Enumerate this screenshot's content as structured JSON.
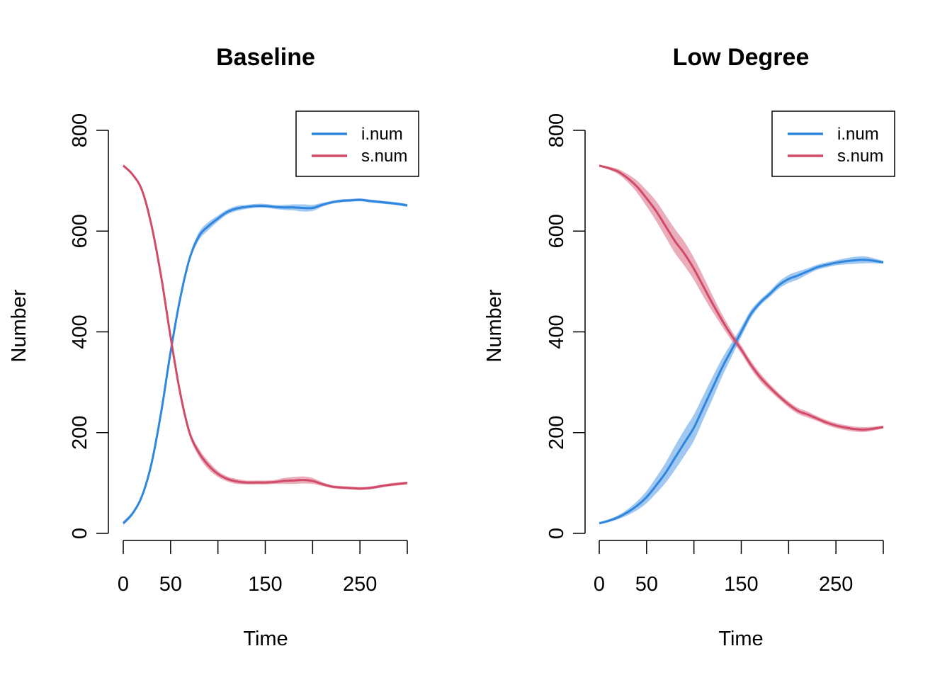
{
  "colors": {
    "i_num": "#2E86DE",
    "s_num": "#D14A68"
  },
  "chart_data": [
    {
      "type": "line",
      "title": "Baseline",
      "xlabel": "Time",
      "ylabel": "Number",
      "xlim": [
        0,
        300
      ],
      "ylim": [
        0,
        800
      ],
      "xticks": [
        0,
        50,
        100,
        150,
        200,
        250,
        300
      ],
      "xtick_labels": [
        "0",
        "50",
        "",
        "150",
        "",
        "250",
        ""
      ],
      "yticks": [
        0,
        200,
        400,
        600,
        800
      ],
      "ytick_labels": [
        "0",
        "200",
        "400",
        "600",
        "800"
      ],
      "legend": {
        "position": "top-right",
        "entries": [
          "i.num",
          "s.num"
        ]
      },
      "x": [
        0,
        10,
        20,
        30,
        40,
        50,
        60,
        70,
        80,
        90,
        100,
        110,
        120,
        130,
        140,
        150,
        160,
        170,
        180,
        190,
        200,
        210,
        220,
        230,
        240,
        250,
        260,
        270,
        280,
        290,
        300
      ],
      "series": [
        {
          "name": "i.num",
          "color_key": "i_num",
          "values": [
            20,
            40,
            75,
            140,
            240,
            360,
            465,
            545,
            590,
            610,
            625,
            638,
            645,
            648,
            650,
            650,
            648,
            647,
            647,
            646,
            646,
            652,
            657,
            660,
            661,
            662,
            660,
            658,
            656,
            654,
            651
          ],
          "band": [
            4,
            4,
            4,
            4,
            4,
            4,
            5,
            6,
            8,
            8,
            6,
            5,
            5,
            4,
            4,
            4,
            4,
            5,
            6,
            7,
            6,
            4,
            3,
            3,
            3,
            3,
            3,
            3,
            3,
            3,
            3
          ]
        },
        {
          "name": "s.num",
          "color_key": "s_num",
          "values": [
            730,
            712,
            680,
            610,
            510,
            390,
            280,
            200,
            160,
            135,
            118,
            108,
            103,
            101,
            101,
            101,
            102,
            104,
            105,
            106,
            104,
            98,
            93,
            91,
            90,
            89,
            90,
            93,
            96,
            98,
            100
          ],
          "band": [
            3,
            3,
            3,
            4,
            4,
            4,
            5,
            6,
            8,
            8,
            6,
            5,
            5,
            4,
            4,
            4,
            4,
            6,
            7,
            7,
            6,
            4,
            3,
            3,
            3,
            3,
            3,
            3,
            3,
            3,
            3
          ]
        }
      ]
    },
    {
      "type": "line",
      "title": "Low Degree",
      "xlabel": "Time",
      "ylabel": "Number",
      "xlim": [
        0,
        300
      ],
      "ylim": [
        0,
        800
      ],
      "xticks": [
        0,
        50,
        100,
        150,
        200,
        250,
        300
      ],
      "xtick_labels": [
        "0",
        "50",
        "",
        "150",
        "",
        "250",
        ""
      ],
      "yticks": [
        0,
        200,
        400,
        600,
        800
      ],
      "ytick_labels": [
        "0",
        "200",
        "400",
        "600",
        "800"
      ],
      "legend": {
        "position": "top-right",
        "entries": [
          "i.num",
          "s.num"
        ]
      },
      "x": [
        0,
        10,
        20,
        30,
        40,
        50,
        60,
        70,
        80,
        90,
        100,
        110,
        120,
        130,
        140,
        150,
        160,
        170,
        180,
        190,
        200,
        210,
        220,
        230,
        240,
        250,
        260,
        270,
        280,
        290,
        300
      ],
      "series": [
        {
          "name": "i.num",
          "color_key": "i_num",
          "values": [
            20,
            25,
            32,
            42,
            55,
            72,
            95,
            120,
            150,
            180,
            210,
            250,
            290,
            330,
            365,
            400,
            435,
            458,
            475,
            493,
            505,
            512,
            520,
            528,
            533,
            537,
            540,
            542,
            543,
            541,
            538
          ],
          "band": [
            2,
            3,
            4,
            6,
            9,
            12,
            16,
            20,
            24,
            26,
            26,
            24,
            22,
            18,
            14,
            10,
            8,
            6,
            6,
            7,
            8,
            8,
            6,
            5,
            5,
            5,
            6,
            7,
            7,
            5,
            3
          ]
        },
        {
          "name": "s.num",
          "color_key": "s_num",
          "values": [
            730,
            725,
            718,
            705,
            688,
            665,
            640,
            610,
            580,
            555,
            525,
            490,
            455,
            422,
            392,
            365,
            335,
            310,
            290,
            272,
            256,
            243,
            236,
            228,
            220,
            214,
            210,
            207,
            206,
            208,
            211
          ],
          "band": [
            2,
            3,
            5,
            8,
            12,
            16,
            20,
            22,
            24,
            24,
            22,
            20,
            16,
            12,
            10,
            8,
            8,
            8,
            7,
            6,
            6,
            6,
            6,
            5,
            5,
            5,
            5,
            5,
            5,
            4,
            3
          ]
        }
      ]
    }
  ]
}
